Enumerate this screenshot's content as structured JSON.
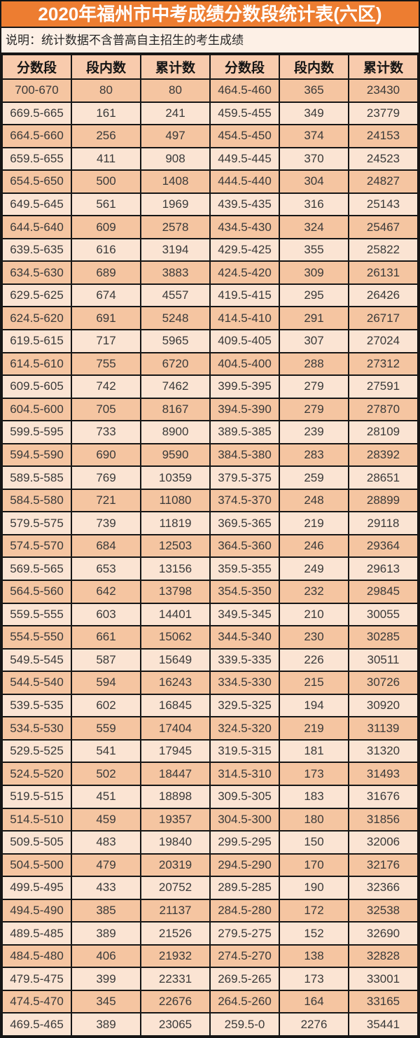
{
  "title": "2020年福州市中考成绩分数段统计表(六区)",
  "note": "说明：统计数据不含普高自主招生的考生成绩",
  "colors": {
    "title_bg": "#ED7D31",
    "title_text": "#FFFFFF",
    "note_bg": "#FDF0E6",
    "header_bg": "#F8CBAD",
    "row_dark_bg": "#F5C5A1",
    "row_light_bg": "#FBE4D3",
    "border": "#161616",
    "text": "#3A3A3A"
  },
  "table": {
    "headers": [
      "分数段",
      "段内数",
      "累计数",
      "分数段",
      "段内数",
      "累计数"
    ],
    "rows": [
      [
        "700-670",
        "80",
        "80",
        "464.5-460",
        "365",
        "23430"
      ],
      [
        "669.5-665",
        "161",
        "241",
        "459.5-455",
        "349",
        "23779"
      ],
      [
        "664.5-660",
        "256",
        "497",
        "454.5-450",
        "374",
        "24153"
      ],
      [
        "659.5-655",
        "411",
        "908",
        "449.5-445",
        "370",
        "24523"
      ],
      [
        "654.5-650",
        "500",
        "1408",
        "444.5-440",
        "304",
        "24827"
      ],
      [
        "649.5-645",
        "561",
        "1969",
        "439.5-435",
        "316",
        "25143"
      ],
      [
        "644.5-640",
        "609",
        "2578",
        "434.5-430",
        "324",
        "25467"
      ],
      [
        "639.5-635",
        "616",
        "3194",
        "429.5-425",
        "355",
        "25822"
      ],
      [
        "634.5-630",
        "689",
        "3883",
        "424.5-420",
        "309",
        "26131"
      ],
      [
        "629.5-625",
        "674",
        "4557",
        "419.5-415",
        "295",
        "26426"
      ],
      [
        "624.5-620",
        "691",
        "5248",
        "414.5-410",
        "291",
        "26717"
      ],
      [
        "619.5-615",
        "717",
        "5965",
        "409.5-405",
        "307",
        "27024"
      ],
      [
        "614.5-610",
        "755",
        "6720",
        "404.5-400",
        "288",
        "27312"
      ],
      [
        "609.5-605",
        "742",
        "7462",
        "399.5-395",
        "279",
        "27591"
      ],
      [
        "604.5-600",
        "705",
        "8167",
        "394.5-390",
        "279",
        "27870"
      ],
      [
        "599.5-595",
        "733",
        "8900",
        "389.5-385",
        "239",
        "28109"
      ],
      [
        "594.5-590",
        "690",
        "9590",
        "384.5-380",
        "283",
        "28392"
      ],
      [
        "589.5-585",
        "769",
        "10359",
        "379.5-375",
        "259",
        "28651"
      ],
      [
        "584.5-580",
        "721",
        "11080",
        "374.5-370",
        "248",
        "28899"
      ],
      [
        "579.5-575",
        "739",
        "11819",
        "369.5-365",
        "219",
        "29118"
      ],
      [
        "574.5-570",
        "684",
        "12503",
        "364.5-360",
        "246",
        "29364"
      ],
      [
        "569.5-565",
        "653",
        "13156",
        "359.5-355",
        "249",
        "29613"
      ],
      [
        "564.5-560",
        "642",
        "13798",
        "354.5-350",
        "232",
        "29845"
      ],
      [
        "559.5-555",
        "603",
        "14401",
        "349.5-345",
        "210",
        "30055"
      ],
      [
        "554.5-550",
        "661",
        "15062",
        "344.5-340",
        "230",
        "30285"
      ],
      [
        "549.5-545",
        "587",
        "15649",
        "339.5-335",
        "226",
        "30511"
      ],
      [
        "544.5-540",
        "594",
        "16243",
        "334.5-330",
        "215",
        "30726"
      ],
      [
        "539.5-535",
        "602",
        "16845",
        "329.5-325",
        "194",
        "30920"
      ],
      [
        "534.5-530",
        "559",
        "17404",
        "324.5-320",
        "219",
        "31139"
      ],
      [
        "529.5-525",
        "541",
        "17945",
        "319.5-315",
        "181",
        "31320"
      ],
      [
        "524.5-520",
        "502",
        "18447",
        "314.5-310",
        "173",
        "31493"
      ],
      [
        "519.5-515",
        "451",
        "18898",
        "309.5-305",
        "183",
        "31676"
      ],
      [
        "514.5-510",
        "459",
        "19357",
        "304.5-300",
        "180",
        "31856"
      ],
      [
        "509.5-505",
        "483",
        "19840",
        "299.5-295",
        "150",
        "32006"
      ],
      [
        "504.5-500",
        "479",
        "20319",
        "294.5-290",
        "170",
        "32176"
      ],
      [
        "499.5-495",
        "433",
        "20752",
        "289.5-285",
        "190",
        "32366"
      ],
      [
        "494.5-490",
        "385",
        "21137",
        "284.5-280",
        "172",
        "32538"
      ],
      [
        "489.5-485",
        "389",
        "21526",
        "279.5-275",
        "152",
        "32690"
      ],
      [
        "484.5-480",
        "406",
        "21932",
        "274.5-270",
        "138",
        "32828"
      ],
      [
        "479.5-475",
        "399",
        "22331",
        "269.5-265",
        "173",
        "33001"
      ],
      [
        "474.5-470",
        "345",
        "22676",
        "264.5-260",
        "164",
        "33165"
      ],
      [
        "469.5-465",
        "389",
        "23065",
        "259.5-0",
        "2276",
        "35441"
      ]
    ]
  }
}
